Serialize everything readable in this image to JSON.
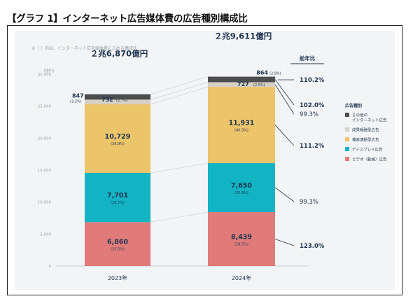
{
  "title": "【グラフ 1】インターネット広告媒体費の広告種別構成比",
  "note": "※（ ）内は、インターネット広告媒体費に占める構成比",
  "yunit": "（億円）",
  "yticks": [
    "30,000",
    "25,000",
    "20,000",
    "15,000",
    "10,000",
    "5,000",
    "0"
  ],
  "growth_header": "前年比",
  "legend_title": "広告種別",
  "colors": {
    "other": "#4d4d4f",
    "performance": "#d6d1c4",
    "search": "#ecc46a",
    "display": "#12b3c3",
    "video": "#e07b79",
    "accent_text": "#1e3550"
  },
  "chart_data": {
    "type": "bar",
    "stacked": true,
    "ylabel": "（億円）",
    "ylim": [
      0,
      30000
    ],
    "categories": [
      "2023年",
      "2024年"
    ],
    "totals": [
      "２兆6,870億円",
      "２兆9,611億円"
    ],
    "series": [
      {
        "key": "video",
        "name": "ビデオ（動画）広告",
        "values": [
          6860,
          8439
        ],
        "shares": [
          "(25.5%)",
          "(28.5%)"
        ],
        "growth": "123.0%"
      },
      {
        "key": "display",
        "name": "ディスプレイ広告",
        "values": [
          7701,
          7650
        ],
        "shares": [
          "(28.7%)",
          "(25.8%)"
        ],
        "growth": "99.3%"
      },
      {
        "key": "search",
        "name": "検索連動型広告",
        "values": [
          10729,
          11931
        ],
        "shares": [
          "(39.9%)",
          "(40.3%)"
        ],
        "growth": "111.2%"
      },
      {
        "key": "performance",
        "name": "成果報酬型広告",
        "values": [
          732,
          727
        ],
        "shares": [
          "(2.7%)",
          "(2.5%)"
        ],
        "growth": "99.3%"
      },
      {
        "key": "other",
        "name": "その他の インターネット広告",
        "values": [
          847,
          864
        ],
        "shares": [
          "(3.2%)",
          "(2.9%)"
        ],
        "growth": "102.0%"
      }
    ],
    "total_growth": "110.2%"
  }
}
